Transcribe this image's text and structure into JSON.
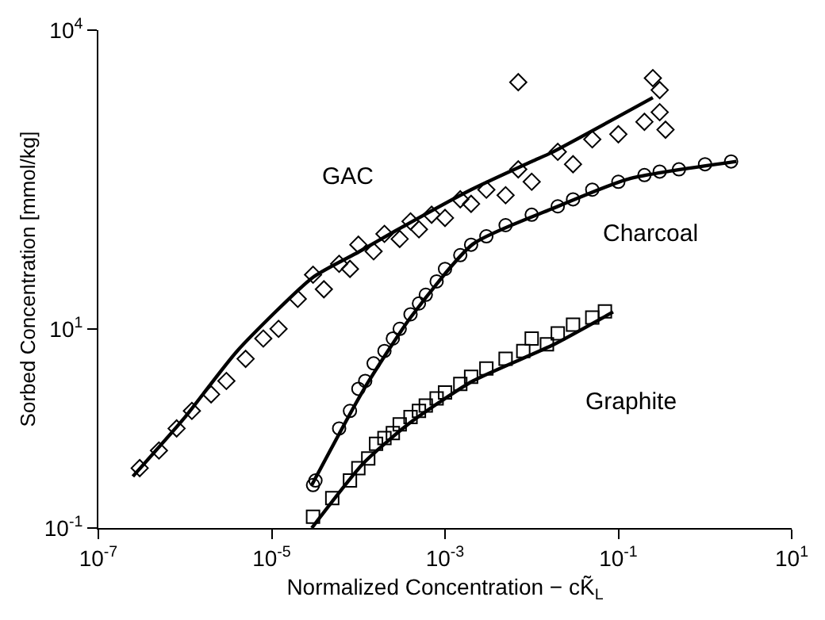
{
  "chart_data": {
    "type": "scatter",
    "xlabel": "Normalized Concentration − cK̃$_{L}$",
    "ylabel": "Sorbed Concentration [mmol/kg]",
    "log": "xy",
    "xlim": [
      1e-07,
      10
    ],
    "ylim": [
      0.1,
      10000
    ],
    "xticks": [
      {
        "value": 1e-07,
        "label": "10$^{-7}$"
      },
      {
        "value": 1e-05,
        "label": "10$^{-5}$"
      },
      {
        "value": 0.001,
        "label": "10$^{-3}$"
      },
      {
        "value": 0.1,
        "label": "10$^{-1}$"
      },
      {
        "value": 10,
        "label": "10$^{1}$"
      }
    ],
    "yticks": [
      {
        "value": 0.1,
        "label": "10$^{-1}$"
      },
      {
        "value": 10,
        "label": "10$^{1}$"
      },
      {
        "value": 10000,
        "label": "10$^{4}$"
      }
    ],
    "grid": false,
    "series": [
      {
        "name": "GAC",
        "marker": "diamond",
        "color": "#000000",
        "x": [
          3e-07,
          5e-07,
          8e-07,
          1.2e-06,
          2e-06,
          3e-06,
          5e-06,
          8e-06,
          1.2e-05,
          2e-05,
          3e-05,
          4e-05,
          6e-05,
          8e-05,
          0.0001,
          0.00015,
          0.0002,
          0.0003,
          0.0004,
          0.0005,
          0.0007,
          0.001,
          0.0015,
          0.002,
          0.003,
          0.005,
          0.007,
          0.01,
          0.02,
          0.03,
          0.05,
          0.1,
          0.2,
          0.3,
          0.3,
          0.35,
          0.007,
          0.25
        ],
        "values": [
          0.4,
          0.6,
          1.0,
          1.5,
          2.2,
          3,
          5,
          8,
          10,
          20,
          35,
          25,
          45,
          40,
          70,
          60,
          90,
          80,
          120,
          100,
          140,
          130,
          200,
          180,
          250,
          220,
          400,
          300,
          600,
          450,
          800,
          900,
          1200,
          2500,
          1500,
          1000,
          3000,
          3300
        ]
      },
      {
        "type": "line",
        "color": "#000000",
        "x": [
          2.5e-07,
          1e-06,
          4e-06,
          3e-05,
          0.0001,
          0.00026,
          0.002,
          0.01,
          0.017,
          0.25
        ],
        "values": [
          0.33,
          1.3,
          6,
          33,
          59,
          95,
          250,
          480,
          590,
          2100
        ]
      },
      {
        "name": "Charcoal",
        "marker": "circle",
        "color": "#000000",
        "x": [
          3e-05,
          3.2e-05,
          6e-05,
          8e-05,
          0.0001,
          0.00012,
          0.00015,
          0.0002,
          0.00025,
          0.0003,
          0.0004,
          0.0005,
          0.0006,
          0.0008,
          0.001,
          0.0015,
          0.002,
          0.003,
          0.005,
          0.01,
          0.02,
          0.03,
          0.05,
          0.1,
          0.2,
          0.3,
          0.5,
          1,
          2
        ],
        "values": [
          0.27,
          0.3,
          1,
          1.5,
          2.5,
          3,
          4.5,
          6,
          8,
          10,
          14,
          18,
          22,
          30,
          40,
          55,
          70,
          85,
          110,
          140,
          170,
          200,
          250,
          300,
          350,
          380,
          400,
          450,
          480
        ]
      },
      {
        "type": "line",
        "color": "#000000",
        "x": [
          2.9e-05,
          0.000115,
          0.0004,
          0.0021,
          0.017,
          0.13,
          2.3
        ],
        "values": [
          0.27,
          2.45,
          13,
          71,
          160,
          320,
          480
        ]
      },
      {
        "name": "Graphite",
        "marker": "square",
        "color": "#000000",
        "x": [
          3e-05,
          5e-05,
          8e-05,
          0.0001,
          0.00013,
          0.00016,
          0.0002,
          0.00025,
          0.0003,
          0.0004,
          0.0005,
          0.0006,
          0.0008,
          0.001,
          0.0015,
          0.002,
          0.003,
          0.005,
          0.008,
          0.01,
          0.015,
          0.02,
          0.03,
          0.05,
          0.07
        ],
        "values": [
          0.13,
          0.2,
          0.3,
          0.4,
          0.5,
          0.7,
          0.8,
          0.9,
          1.1,
          1.3,
          1.5,
          1.7,
          2.0,
          2.3,
          2.8,
          3.3,
          4,
          5,
          6,
          8,
          7,
          9,
          11,
          13,
          15
        ]
      },
      {
        "type": "line",
        "color": "#000000",
        "x": [
          2.9e-05,
          0.000115,
          0.0004,
          0.0021,
          0.017,
          0.087
        ],
        "values": [
          0.1,
          0.45,
          1.15,
          3,
          6.8,
          14.8
        ]
      }
    ]
  }
}
